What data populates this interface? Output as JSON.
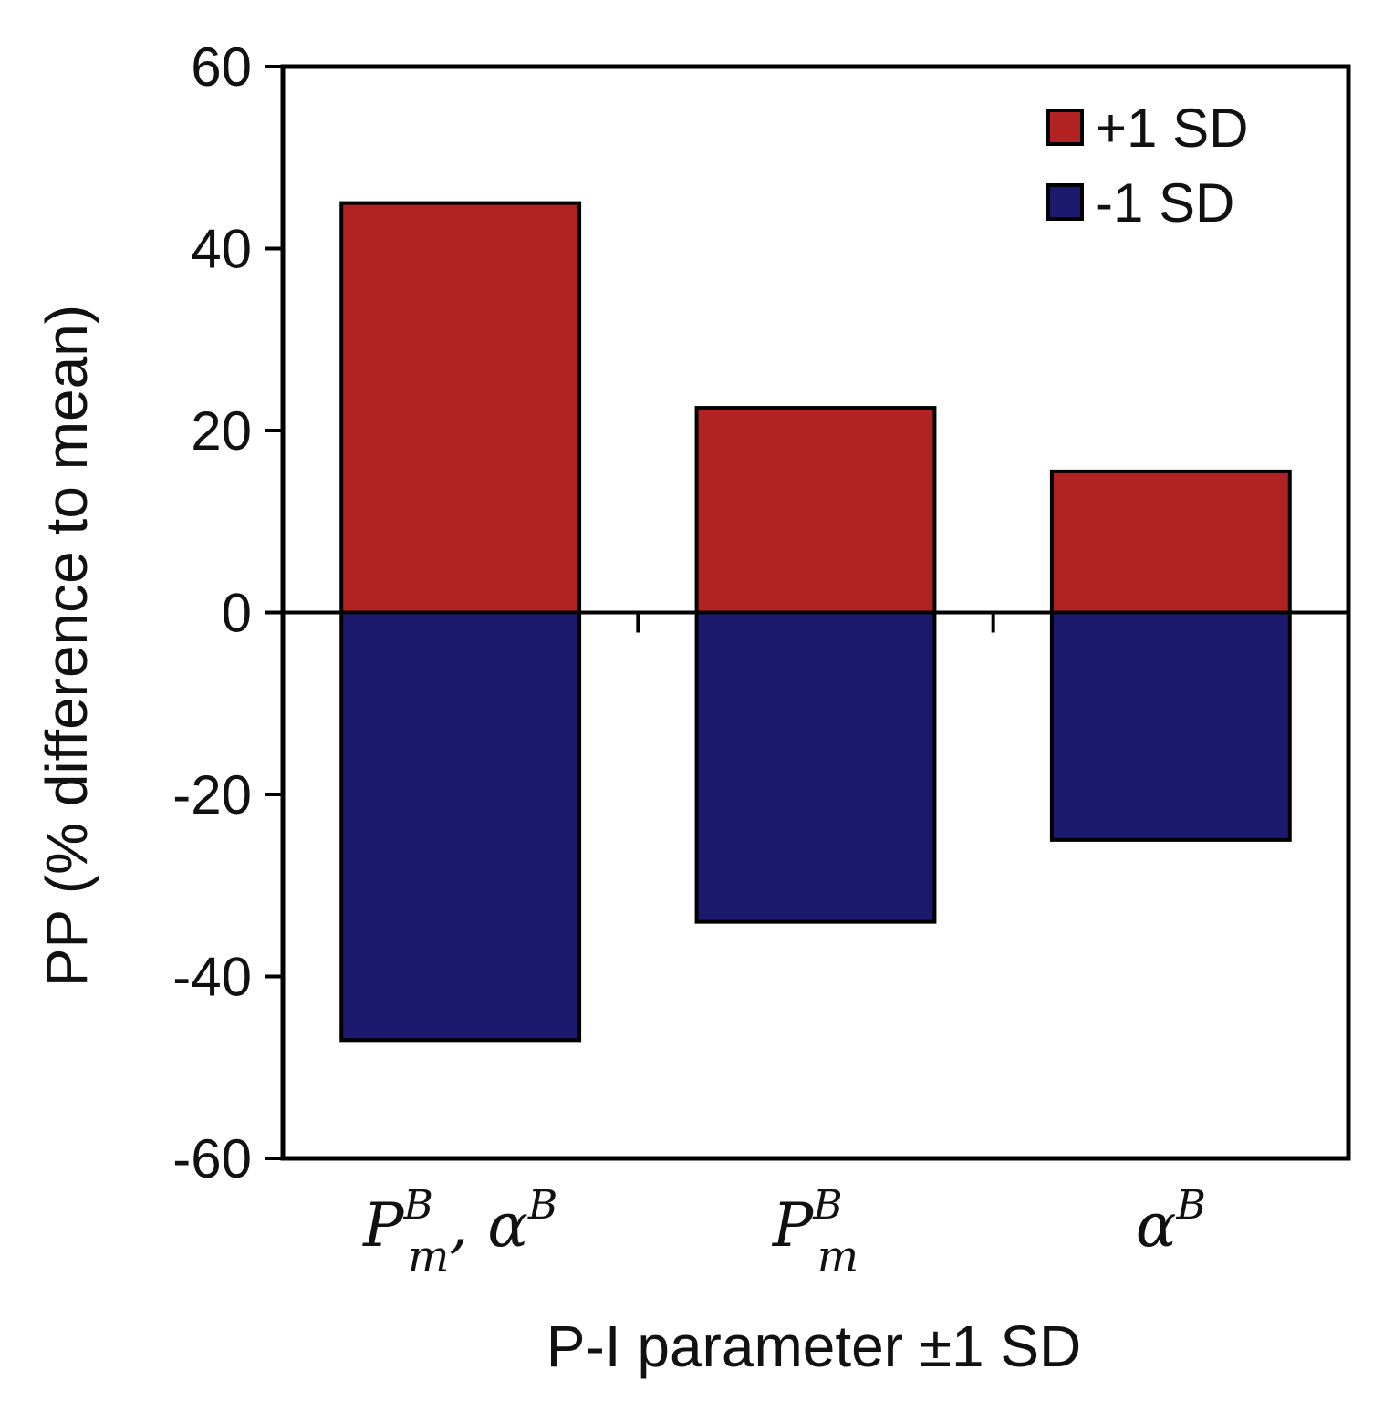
{
  "chart_data": {
    "type": "bar",
    "categories": [
      {
        "base": "P",
        "sub": "m",
        "sup": "B",
        "extra": ", α",
        "extra_sup": "B"
      },
      {
        "base": "P",
        "sub": "m",
        "sup": "B",
        "extra": "",
        "extra_sup": ""
      },
      {
        "base": "α",
        "sub": "",
        "sup": "B",
        "extra": "",
        "extra_sup": ""
      }
    ],
    "series": [
      {
        "name": "+1 SD",
        "color": "#b22222",
        "values": [
          45,
          22.5,
          15.5
        ]
      },
      {
        "name": "-1 SD",
        "color": "#1c1a6e",
        "values": [
          -47,
          -34,
          -25
        ]
      }
    ],
    "title": "",
    "xlabel": "P-I parameter ±1 SD",
    "ylabel": "PP (% difference to mean)",
    "ylim": [
      -60,
      60
    ],
    "yticks": [
      60,
      40,
      20,
      0,
      -20,
      -40,
      -60
    ],
    "ytick_labels": [
      "60",
      "40",
      "20",
      "0",
      "-20",
      "-40",
      "-60"
    ],
    "legend_position": "top-right",
    "grid": false
  }
}
